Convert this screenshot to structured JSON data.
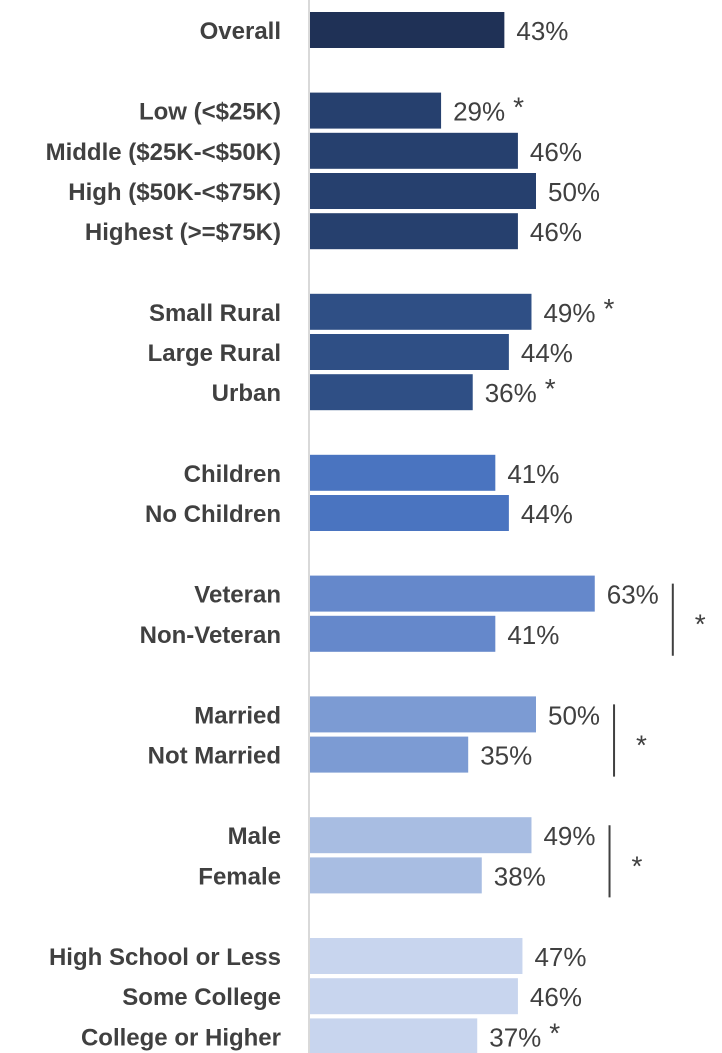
{
  "chart_data": {
    "type": "bar",
    "orientation": "horizontal",
    "value_suffix": "%",
    "xlim": [
      0,
      100
    ],
    "grid": false,
    "groups": [
      {
        "color": "#1f3156",
        "bars": [
          {
            "label": "Overall",
            "value": 43,
            "sig": ""
          }
        ]
      },
      {
        "color": "#26406e",
        "bars": [
          {
            "label": "Low (<$25K)",
            "value": 29,
            "sig": "*"
          },
          {
            "label": "Middle ($25K-<$50K)",
            "value": 46,
            "sig": ""
          },
          {
            "label": "High ($50K-<$75K)",
            "value": 50,
            "sig": ""
          },
          {
            "label": "Highest (>=$75K)",
            "value": 46,
            "sig": ""
          }
        ]
      },
      {
        "color": "#2f4f85",
        "bars": [
          {
            "label": "Small Rural",
            "value": 49,
            "sig": "*"
          },
          {
            "label": "Large Rural",
            "value": 44,
            "sig": ""
          },
          {
            "label": "Urban",
            "value": 36,
            "sig": "*"
          }
        ]
      },
      {
        "color": "#4a74c0",
        "bars": [
          {
            "label": "Children",
            "value": 41,
            "sig": ""
          },
          {
            "label": "No Children",
            "value": 44,
            "sig": ""
          }
        ]
      },
      {
        "color": "#6588cb",
        "group_sig": "*",
        "bars": [
          {
            "label": "Veteran",
            "value": 63,
            "sig": ""
          },
          {
            "label": "Non-Veteran",
            "value": 41,
            "sig": ""
          }
        ]
      },
      {
        "color": "#7c9bd3",
        "group_sig": "*",
        "bars": [
          {
            "label": "Married",
            "value": 50,
            "sig": ""
          },
          {
            "label": "Not Married",
            "value": 35,
            "sig": ""
          }
        ]
      },
      {
        "color": "#a8bde2",
        "group_sig": "*",
        "bars": [
          {
            "label": "Male",
            "value": 49,
            "sig": ""
          },
          {
            "label": "Female",
            "value": 38,
            "sig": ""
          }
        ]
      },
      {
        "color": "#c8d5ee",
        "bars": [
          {
            "label": "High School or Less",
            "value": 47,
            "sig": ""
          },
          {
            "label": "Some College",
            "value": 46,
            "sig": ""
          },
          {
            "label": "College or Higher",
            "value": 37,
            "sig": "*"
          }
        ]
      }
    ]
  }
}
